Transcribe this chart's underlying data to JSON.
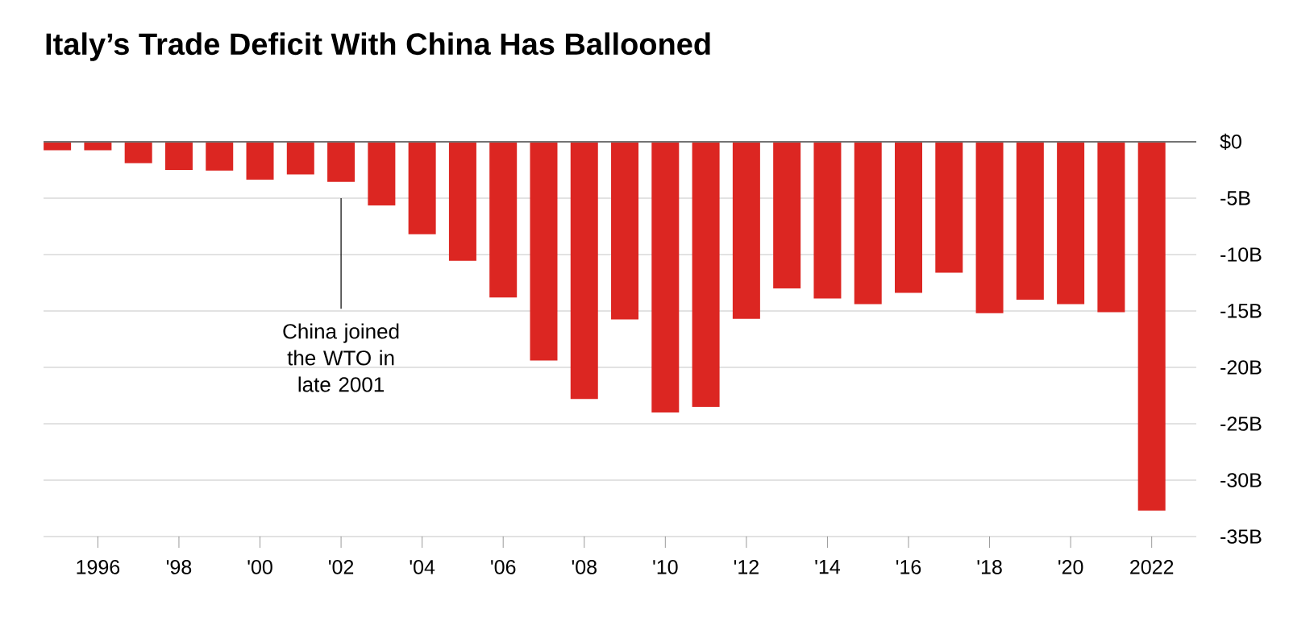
{
  "chart_data": {
    "type": "bar",
    "title": "Italy’s Trade Deficit With China Has Ballooned",
    "categories": [
      null,
      "1996",
      null,
      "'98",
      null,
      "'00",
      null,
      "'02",
      null,
      "'04",
      null,
      "'06",
      null,
      "'08",
      null,
      "'10",
      null,
      "'12",
      null,
      "'14",
      null,
      "'16",
      null,
      "'18",
      null,
      "'20",
      null,
      "2022"
    ],
    "values": [
      -0.75,
      -0.75,
      -1.9,
      -2.5,
      -2.55,
      -3.35,
      -2.9,
      -3.55,
      -5.65,
      -8.2,
      -10.55,
      -13.8,
      -19.4,
      -22.8,
      -15.75,
      -24.0,
      -23.5,
      -15.7,
      -13.0,
      -13.9,
      -14.4,
      -13.4,
      -11.6,
      -15.2,
      -14.0,
      -14.4,
      -15.1,
      -32.7
    ],
    "color": "#dc2622",
    "ylim": [
      -35,
      0
    ],
    "yticks": [
      {
        "value": 0,
        "label": "$0"
      },
      {
        "value": -5,
        "label": "-5B"
      },
      {
        "value": -10,
        "label": "-10B"
      },
      {
        "value": -15,
        "label": "-15B"
      },
      {
        "value": -20,
        "label": "-20B"
      },
      {
        "value": -25,
        "label": "-25B"
      },
      {
        "value": -30,
        "label": "-30B"
      },
      {
        "value": -35,
        "label": "-35B"
      }
    ],
    "grid": "y",
    "annotations": [
      "China joined the WTO in late 2001"
    ]
  }
}
